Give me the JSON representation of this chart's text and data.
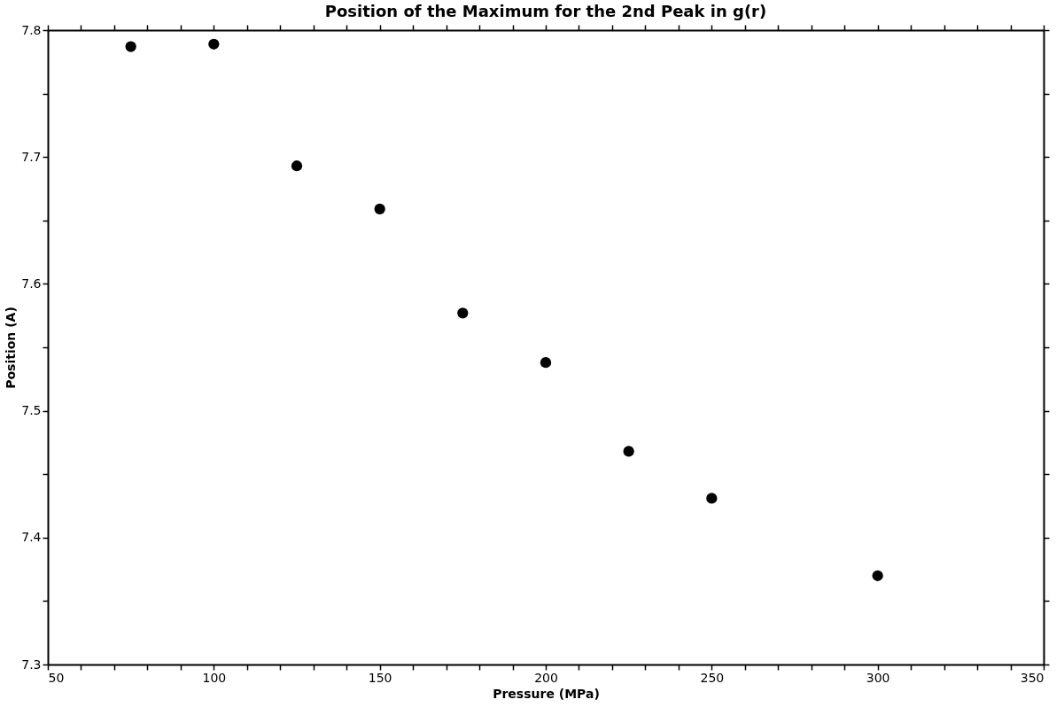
{
  "chart_data": {
    "type": "scatter",
    "title": "Position of the Maximum for the 2nd Peak in g(r)",
    "xlabel": "Pressure (MPa)",
    "ylabel": "Position (A)",
    "x": [
      75,
      100,
      125,
      150,
      175,
      200,
      225,
      250,
      300
    ],
    "series": [
      {
        "color": "#000000",
        "values": [
          7.787,
          7.789,
          7.693,
          7.659,
          7.577,
          7.538,
          7.468,
          7.431,
          7.37
        ]
      }
    ],
    "xlim": [
      50,
      350
    ],
    "xticks": [
      50,
      {
        "value": 60,
        "label": null
      },
      {
        "value": 70,
        "label": null
      },
      {
        "value": 80,
        "label": null
      },
      {
        "value": 90,
        "label": null
      },
      100,
      {
        "value": 110,
        "label": null
      },
      {
        "value": 120,
        "label": null
      },
      {
        "value": 130,
        "label": null
      },
      {
        "value": 140,
        "label": null
      },
      150,
      {
        "value": 160,
        "label": null
      },
      {
        "value": 170,
        "label": null
      },
      {
        "value": 180,
        "label": null
      },
      {
        "value": 190,
        "label": null
      },
      200,
      {
        "value": 210,
        "label": null
      },
      {
        "value": 220,
        "label": null
      },
      {
        "value": 230,
        "label": null
      },
      {
        "value": 240,
        "label": null
      },
      250,
      {
        "value": 260,
        "label": null
      },
      {
        "value": 270,
        "label": null
      },
      {
        "value": 280,
        "label": null
      },
      {
        "value": 290,
        "label": null
      },
      300,
      {
        "value": 310,
        "label": null
      },
      {
        "value": 320,
        "label": null
      },
      {
        "value": 330,
        "label": null
      },
      {
        "value": 340,
        "label": null
      },
      350
    ],
    "ylim": [
      7.3,
      7.8
    ],
    "yticks": [
      7.3,
      {
        "value": 7.35,
        "label": null
      },
      7.4,
      {
        "value": 7.45,
        "label": null
      },
      7.5,
      {
        "value": 7.55,
        "label": null
      },
      7.6,
      {
        "value": 7.65,
        "label": null
      },
      7.7,
      {
        "value": 7.75,
        "label": null
      },
      7.8
    ],
    "grid": false,
    "legend": false,
    "marker": "circle"
  }
}
